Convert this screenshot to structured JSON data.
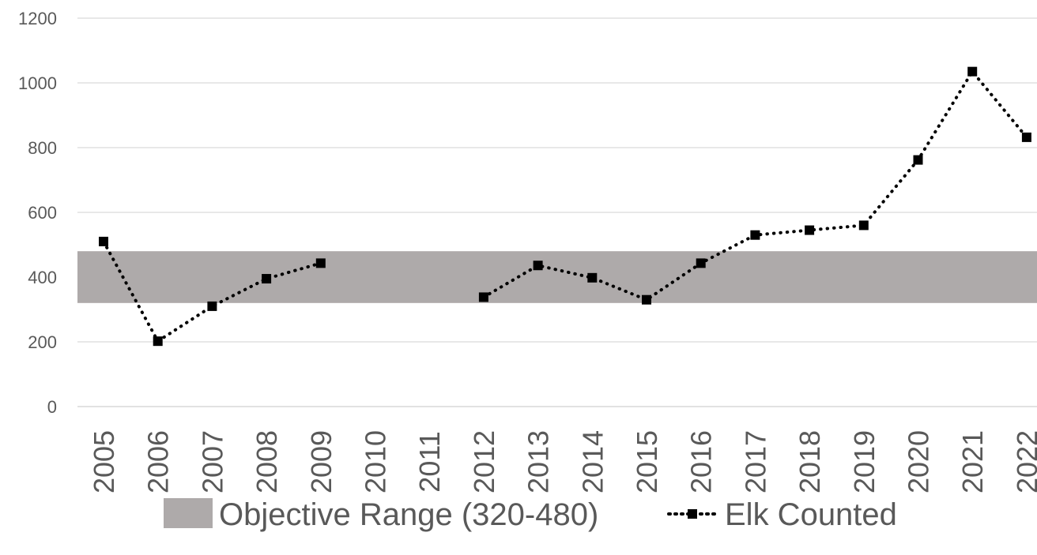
{
  "chart_data": {
    "type": "line",
    "x": [
      "2005",
      "2006",
      "2007",
      "2008",
      "2009",
      "2010",
      "2011",
      "2012",
      "2013",
      "2014",
      "2015",
      "2016",
      "2017",
      "2018",
      "2019",
      "2020",
      "2021",
      "2022"
    ],
    "series": [
      {
        "name": "Elk Counted",
        "values": [
          510,
          202,
          310,
          395,
          443,
          null,
          null,
          338,
          436,
          398,
          330,
          443,
          530,
          545,
          560,
          762,
          1035,
          832
        ],
        "color": "#000000",
        "line_style": "dotted",
        "marker": "square"
      }
    ],
    "bands": [
      {
        "name": "Objective Range (320-480)",
        "from": 320,
        "to": 480,
        "color": "#aeaaaa"
      }
    ],
    "yticks": [
      0,
      200,
      400,
      600,
      800,
      1000,
      1200
    ],
    "ylim": [
      0,
      1200
    ],
    "grid": true,
    "grid_color": "#d9d9d9",
    "legend_position": "bottom",
    "title": "",
    "xlabel": "",
    "ylabel": ""
  }
}
